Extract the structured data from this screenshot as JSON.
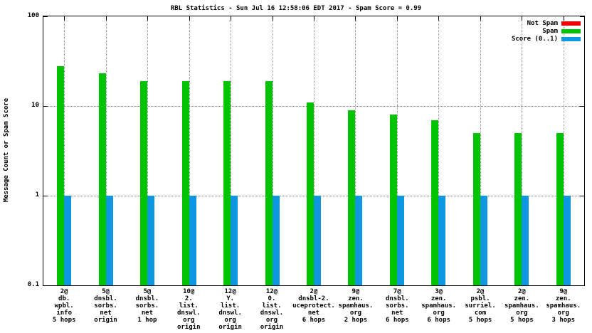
{
  "chart_data": {
    "type": "bar",
    "title": "RBL Statistics - Sun Jul 16 12:58:06 EDT 2017 - Spam Score = 0.99",
    "ylabel": "Message Count or Spam Score",
    "xlabel": "",
    "y_scale": "log",
    "ylim": [
      0.1,
      100
    ],
    "y_ticks": [
      100,
      10,
      1,
      0.1
    ],
    "grid": true,
    "legend_position": "top-right",
    "categories": [
      [
        "2@",
        "db.",
        "wpbl.",
        "info",
        "5 hops"
      ],
      [
        "5@",
        "dnsbl.",
        "sorbs.",
        "net",
        "origin"
      ],
      [
        "5@",
        "dnsbl.",
        "sorbs.",
        "net",
        "1 hop"
      ],
      [
        "10@",
        "2.",
        "list.",
        "dnswl.",
        "org",
        "origin"
      ],
      [
        "12@",
        "Y.",
        "list.",
        "dnswl.",
        "org",
        "origin"
      ],
      [
        "12@",
        "0.",
        "list.",
        "dnswl.",
        "org",
        "origin"
      ],
      [
        "2@",
        "dnsbl-2.",
        "uceprotect.",
        "net",
        "6 hops"
      ],
      [
        "9@",
        "zen.",
        "spamhaus.",
        "org",
        "2 hops"
      ],
      [
        "7@",
        "dnsbl.",
        "sorbs.",
        "net",
        "6 hops"
      ],
      [
        "3@",
        "zen.",
        "spamhaus.",
        "org",
        "6 hops"
      ],
      [
        "2@",
        "psbl.",
        "surriel.",
        "com",
        "5 hops"
      ],
      [
        "2@",
        "zen.",
        "spamhaus.",
        "org",
        "5 hops"
      ],
      [
        "9@",
        "zen.",
        "spamhaus.",
        "org",
        "3 hops"
      ]
    ],
    "series": [
      {
        "name": "Not Spam",
        "color": "#ee0000",
        "values": [
          0,
          0,
          0,
          0,
          0,
          0,
          0,
          0,
          0,
          0,
          0,
          0,
          0
        ]
      },
      {
        "name": "Spam",
        "color": "#00c400",
        "values": [
          28,
          23,
          19,
          19,
          19,
          19,
          11,
          9,
          8,
          7,
          5,
          5,
          5
        ]
      },
      {
        "name": "Score (0..1)",
        "color": "#0e97e0",
        "values": [
          1,
          1,
          1,
          1,
          1,
          1,
          1,
          1,
          1,
          1,
          1,
          1,
          1
        ]
      }
    ]
  }
}
